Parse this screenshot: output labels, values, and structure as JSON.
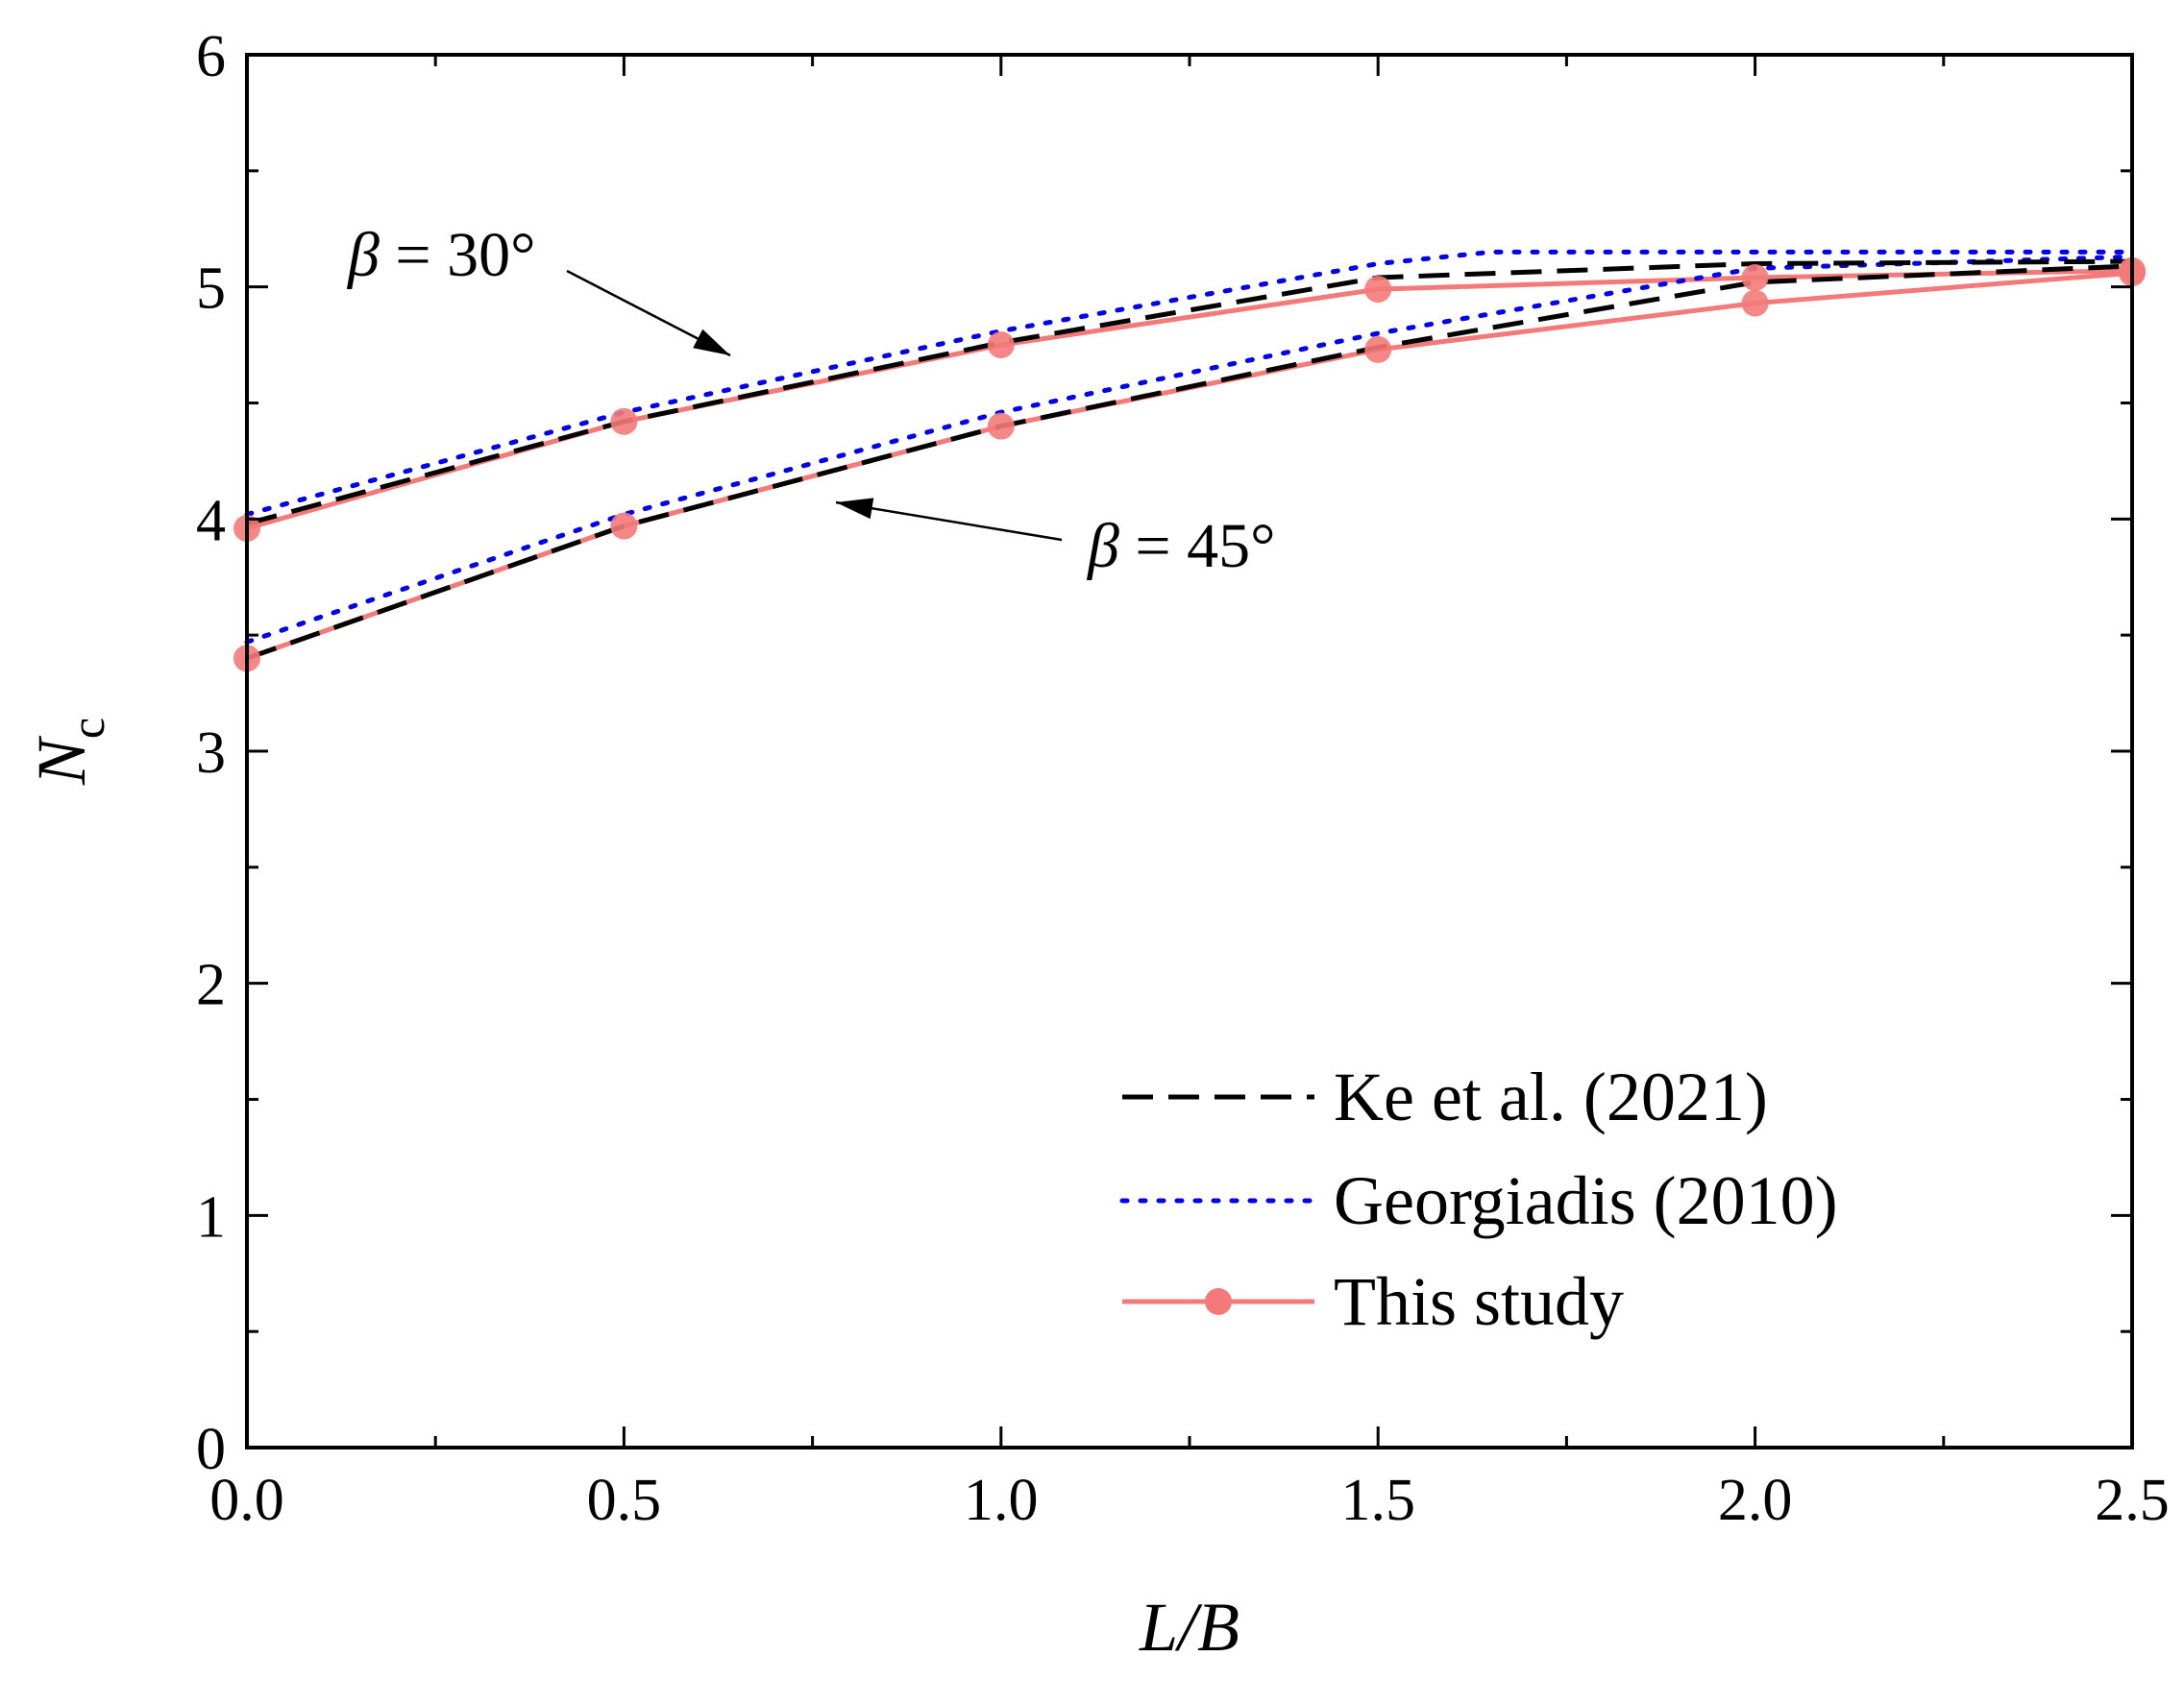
{
  "chart_data": {
    "type": "line",
    "xlabel": "L/B",
    "ylabel": {
      "main": "N",
      "sub": "c"
    },
    "xlim": [
      0,
      2.5
    ],
    "ylim": [
      0,
      6
    ],
    "xticks": [
      0,
      0.5,
      1.0,
      1.5,
      2.0,
      2.5
    ],
    "xtick_labels": [
      "0.0",
      "0.5",
      "1.0",
      "1.5",
      "2.0",
      "2.5"
    ],
    "yticks": [
      0,
      1,
      2,
      3,
      4,
      5,
      6
    ],
    "ytick_labels": [
      "0",
      "1",
      "2",
      "3",
      "4",
      "5",
      "6"
    ],
    "x_minor_step": 0.25,
    "y_minor_step": 0.5,
    "grid": false,
    "legend_position": "bottom-right",
    "series": [
      {
        "name": "Ke et al. (2021)",
        "style": "dashed",
        "color": "#000000",
        "groups": [
          {
            "beta": "30°",
            "x": [
              0,
              0.5,
              1.0,
              1.5,
              2.0,
              2.5
            ],
            "y": [
              3.98,
              4.42,
              4.76,
              5.04,
              5.1,
              5.11
            ]
          },
          {
            "beta": "45°",
            "x": [
              0,
              0.5,
              1.0,
              1.5,
              2.0,
              2.5
            ],
            "y": [
              3.4,
              3.97,
              4.4,
              4.74,
              5.02,
              5.09
            ]
          }
        ]
      },
      {
        "name": "Georgiadis (2010)",
        "style": "dotted",
        "color": "#0000ee",
        "groups": [
          {
            "beta": "30°",
            "x": [
              0,
              0.5,
              1.0,
              1.5,
              1.65,
              2.0,
              2.5
            ],
            "y": [
              4.02,
              4.46,
              4.81,
              5.1,
              5.15,
              5.15,
              5.15
            ]
          },
          {
            "beta": "45°",
            "x": [
              0,
              0.5,
              1.0,
              1.5,
              2.0,
              2.5
            ],
            "y": [
              3.47,
              4.02,
              4.46,
              4.8,
              5.08,
              5.13
            ]
          }
        ]
      },
      {
        "name": "This study",
        "style": "solid-marker",
        "color": "#f47a7a",
        "groups": [
          {
            "beta": "30°",
            "x": [
              0,
              0.5,
              1.0,
              1.5,
              2.0,
              2.5
            ],
            "y": [
              3.96,
              4.42,
              4.75,
              4.99,
              5.04,
              5.07
            ]
          },
          {
            "beta": "45°",
            "x": [
              0,
              0.5,
              1.0,
              1.5,
              2.0,
              2.5
            ],
            "y": [
              3.4,
              3.97,
              4.4,
              4.73,
              4.93,
              5.06
            ]
          }
        ]
      }
    ],
    "annotations": [
      {
        "symbol": "β",
        "text": " = 30°",
        "target_x": 0.67,
        "target_y": 4.67
      },
      {
        "symbol": "β",
        "text": " = 45°",
        "target_x": 0.77,
        "target_y": 4.09
      }
    ]
  }
}
